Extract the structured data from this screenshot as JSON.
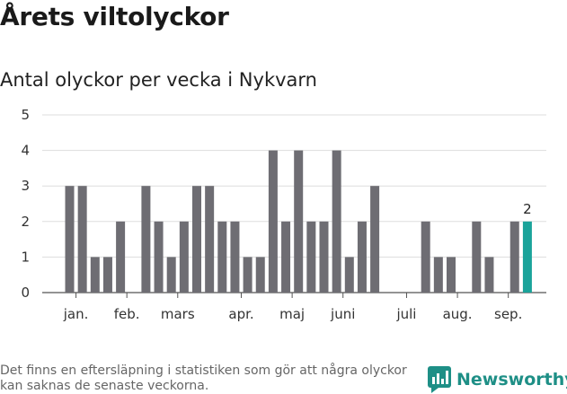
{
  "title": "Årets viltolyckor",
  "subtitle": "Antal olyckor per vecka i Nykvarn",
  "footer": {
    "note": "Det finns en eftersläpning i statistiken som gör att några olyckor kan saknas de senaste veckorna."
  },
  "brand": {
    "name": "Newsworthy",
    "icon": "newsworthy-logo-icon"
  },
  "colors": {
    "bar": "#6e6d73",
    "highlight": "#1aa39a",
    "grid": "#dddddd"
  },
  "chart_data": {
    "type": "bar",
    "x": [
      1,
      2,
      3,
      4,
      5,
      6,
      7,
      8,
      9,
      10,
      11,
      12,
      13,
      14,
      15,
      16,
      17,
      18,
      19,
      20,
      21,
      22,
      23,
      24,
      25,
      26,
      27,
      28,
      29,
      30,
      31,
      32,
      33,
      34,
      35,
      36,
      37
    ],
    "values": [
      3,
      3,
      1,
      1,
      2,
      0,
      3,
      2,
      1,
      2,
      3,
      3,
      2,
      2,
      1,
      1,
      4,
      2,
      4,
      2,
      2,
      4,
      1,
      2,
      3,
      0,
      0,
      0,
      2,
      1,
      1,
      0,
      2,
      1,
      0,
      2,
      2
    ],
    "highlight_index": 36,
    "highlight_label": "2",
    "month_labels": [
      {
        "label": "jan.",
        "x": 1.5
      },
      {
        "label": "feb.",
        "x": 5.5
      },
      {
        "label": "mars",
        "x": 9.5
      },
      {
        "label": "apr.",
        "x": 14.5
      },
      {
        "label": "maj",
        "x": 18.5
      },
      {
        "label": "juni",
        "x": 22.5
      },
      {
        "label": "juli",
        "x": 27.5
      },
      {
        "label": "aug.",
        "x": 31.5
      },
      {
        "label": "sep.",
        "x": 35.5
      }
    ],
    "ylim": [
      0,
      5
    ],
    "yticks": [
      0,
      1,
      2,
      3,
      4,
      5
    ],
    "grid": true
  }
}
